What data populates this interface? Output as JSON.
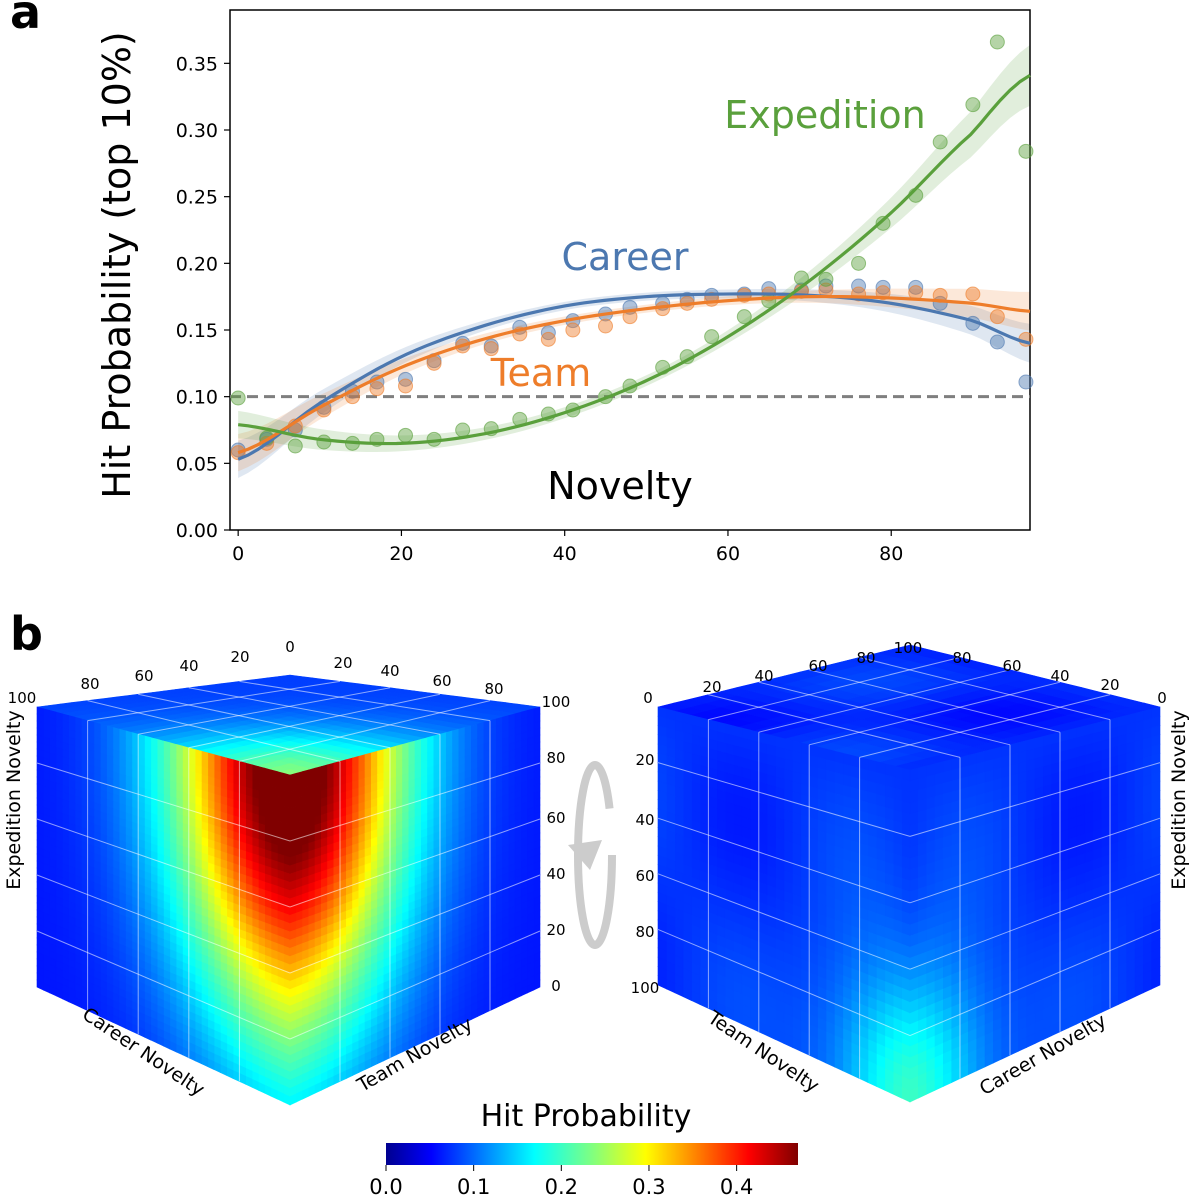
{
  "panel_a": {
    "letter": "a",
    "chart_data": {
      "type": "line",
      "title": "",
      "xlabel": "Novelty",
      "ylabel": "Hit Probability (top 10%)",
      "xlim": [
        -1,
        97
      ],
      "ylim": [
        0.0,
        0.39
      ],
      "xticks": [
        0,
        20,
        40,
        60,
        80
      ],
      "yticks": [
        0.0,
        0.05,
        0.1,
        0.15,
        0.2,
        0.25,
        0.3,
        0.35
      ],
      "xtick_labels": [
        "0",
        "20",
        "40",
        "60",
        "80"
      ],
      "ytick_labels": [
        "0.00",
        "0.05",
        "0.10",
        "0.15",
        "0.20",
        "0.25",
        "0.30",
        "0.35"
      ],
      "baseline": 0.1,
      "grid": false,
      "legend": "inline labels",
      "series": [
        {
          "name": "Career",
          "color": "#4c78b0",
          "points": [
            [
              0,
              0.06
            ],
            [
              3.5,
              0.068
            ],
            [
              7,
              0.075
            ],
            [
              10.5,
              0.092
            ],
            [
              14,
              0.104
            ],
            [
              17,
              0.111
            ],
            [
              20.5,
              0.113
            ],
            [
              24,
              0.127
            ],
            [
              27.5,
              0.14
            ],
            [
              31,
              0.138
            ],
            [
              34.5,
              0.152
            ],
            [
              38,
              0.148
            ],
            [
              41,
              0.157
            ],
            [
              45,
              0.162
            ],
            [
              48,
              0.167
            ],
            [
              52,
              0.17
            ],
            [
              55,
              0.173
            ],
            [
              58,
              0.176
            ],
            [
              62,
              0.177
            ],
            [
              65,
              0.181
            ],
            [
              69,
              0.18
            ],
            [
              72,
              0.183
            ],
            [
              76,
              0.183
            ],
            [
              79,
              0.182
            ],
            [
              83,
              0.182
            ],
            [
              86,
              0.17
            ],
            [
              90,
              0.155
            ],
            [
              93,
              0.141
            ],
            [
              96.5,
              0.111
            ]
          ],
          "fit": [
            [
              0,
              0.053
            ],
            [
              10,
              0.095
            ],
            [
              20,
              0.13
            ],
            [
              30,
              0.153
            ],
            [
              40,
              0.168
            ],
            [
              50,
              0.175
            ],
            [
              60,
              0.177
            ],
            [
              70,
              0.176
            ],
            [
              80,
              0.17
            ],
            [
              90,
              0.157
            ],
            [
              97,
              0.14
            ]
          ]
        },
        {
          "name": "Team",
          "color": "#ee7d2a",
          "points": [
            [
              0,
              0.058
            ],
            [
              3.5,
              0.065
            ],
            [
              7,
              0.078
            ],
            [
              10.5,
              0.09
            ],
            [
              14,
              0.1
            ],
            [
              17,
              0.106
            ],
            [
              20.5,
              0.108
            ],
            [
              24,
              0.125
            ],
            [
              27.5,
              0.138
            ],
            [
              31,
              0.136
            ],
            [
              34.5,
              0.147
            ],
            [
              38,
              0.143
            ],
            [
              41,
              0.15
            ],
            [
              45,
              0.153
            ],
            [
              48,
              0.16
            ],
            [
              52,
              0.166
            ],
            [
              55,
              0.17
            ],
            [
              58,
              0.173
            ],
            [
              62,
              0.176
            ],
            [
              65,
              0.177
            ],
            [
              69,
              0.179
            ],
            [
              72,
              0.18
            ],
            [
              76,
              0.177
            ],
            [
              79,
              0.178
            ],
            [
              83,
              0.178
            ],
            [
              86,
              0.176
            ],
            [
              90,
              0.177
            ],
            [
              93,
              0.16
            ],
            [
              96.5,
              0.143
            ]
          ],
          "fit": [
            [
              0,
              0.058
            ],
            [
              10,
              0.092
            ],
            [
              20,
              0.122
            ],
            [
              30,
              0.143
            ],
            [
              40,
              0.157
            ],
            [
              50,
              0.166
            ],
            [
              60,
              0.172
            ],
            [
              70,
              0.175
            ],
            [
              80,
              0.174
            ],
            [
              90,
              0.17
            ],
            [
              97,
              0.164
            ]
          ]
        },
        {
          "name": "Expedition",
          "color": "#5aa03c",
          "points": [
            [
              0,
              0.099
            ],
            [
              3.5,
              0.069
            ],
            [
              7,
              0.063
            ],
            [
              10.5,
              0.066
            ],
            [
              14,
              0.065
            ],
            [
              17,
              0.068
            ],
            [
              20.5,
              0.071
            ],
            [
              24,
              0.068
            ],
            [
              27.5,
              0.075
            ],
            [
              31,
              0.076
            ],
            [
              34.5,
              0.083
            ],
            [
              38,
              0.087
            ],
            [
              41,
              0.09
            ],
            [
              45,
              0.1
            ],
            [
              48,
              0.108
            ],
            [
              52,
              0.122
            ],
            [
              55,
              0.13
            ],
            [
              58,
              0.145
            ],
            [
              62,
              0.16
            ],
            [
              65,
              0.172
            ],
            [
              69,
              0.189
            ],
            [
              72,
              0.188
            ],
            [
              76,
              0.2
            ],
            [
              79,
              0.23
            ],
            [
              83,
              0.251
            ],
            [
              86,
              0.291
            ],
            [
              90,
              0.319
            ],
            [
              93,
              0.366
            ],
            [
              96.5,
              0.284
            ]
          ],
          "fit": [
            [
              0,
              0.079
            ],
            [
              10,
              0.068
            ],
            [
              20,
              0.065
            ],
            [
              30,
              0.072
            ],
            [
              40,
              0.088
            ],
            [
              50,
              0.112
            ],
            [
              60,
              0.145
            ],
            [
              70,
              0.187
            ],
            [
              80,
              0.238
            ],
            [
              90,
              0.298
            ],
            [
              97,
              0.341
            ]
          ]
        }
      ]
    }
  },
  "panel_b": {
    "letter": "b",
    "cube_left": {
      "axis_career": "Career Novelty",
      "axis_team": "Team Novelty",
      "axis_expedition": "Expedition Novelty",
      "ticks_career": [
        "100",
        "80",
        "60",
        "40",
        "20",
        "0"
      ],
      "ticks_team": [
        "20",
        "40",
        "60",
        "80",
        "100"
      ],
      "ticks_expedition": [
        "80",
        "60",
        "40",
        "20",
        "0"
      ],
      "peak_hit_probability": 0.45
    },
    "cube_right": {
      "axis_team": "Team Novelty",
      "axis_career": "Career Novelty",
      "axis_expedition": "Expedition Novelty",
      "ticks_team": [
        "0",
        "20",
        "40",
        "60",
        "80",
        "100"
      ],
      "ticks_career": [
        "80",
        "60",
        "40",
        "20",
        "0"
      ],
      "ticks_expedition": [
        "20",
        "40",
        "60",
        "80",
        "100"
      ],
      "peak_hit_probability": 0.2
    },
    "rotation_icon": "rotate-arrow-icon",
    "colorbar": {
      "title": "Hit Probability",
      "colormap": "jet",
      "range": [
        0.0,
        0.47
      ],
      "tick_values": [
        0.0,
        0.1,
        0.2,
        0.3,
        0.4
      ],
      "tick_labels": [
        "0.0",
        "0.1",
        "0.2",
        "0.3",
        "0.4"
      ]
    }
  },
  "chart_data": {
    "type": "line",
    "title": "",
    "xlabel": "Novelty",
    "ylabel": "Hit Probability (top 10%)",
    "xlim": [
      -1,
      97
    ],
    "ylim": [
      0.0,
      0.39
    ],
    "series_names": [
      "Career",
      "Team",
      "Expedition"
    ],
    "baseline": 0.1
  }
}
